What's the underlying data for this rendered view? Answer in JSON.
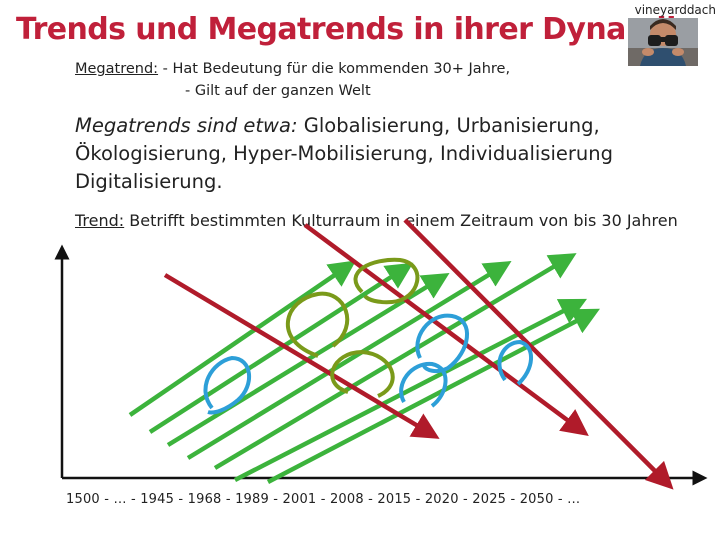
{
  "title": "Trends und Megatrends in ihrer Dynamik",
  "brand": "vineyarddach",
  "megatrend_def": {
    "label": "Megatrend:",
    "line1": "- Hat Bedeutung für die kommenden 30+ Jahre,",
    "line2": "- Gilt auf der ganzen Welt"
  },
  "megatrends": {
    "lead": "Megatrends sind etwa:",
    "items": "Globalisierung, Urbanisierung, Ökologisierung, Hyper-Mobilisierung, Individualisierung Digitalisierung."
  },
  "trend_def": {
    "label": "Trend:",
    "text": "Betrifft bestimmten Kulturraum in einem Zeitraum von bis 30 Jahren"
  },
  "timeline": "1500 - … - 1945 - 1968 - 1989 - 2001 - 2008 - 2015 - 2020 - 2025 - 2050 - …",
  "colors": {
    "title": "#c0203a",
    "green_arrow": "#3cb33c",
    "red_arrow": "#b01b2a",
    "olive_loop": "#7a9a1a",
    "blue_loop": "#2d9fd8"
  },
  "logo_icon": "person-with-binoculars-icon"
}
